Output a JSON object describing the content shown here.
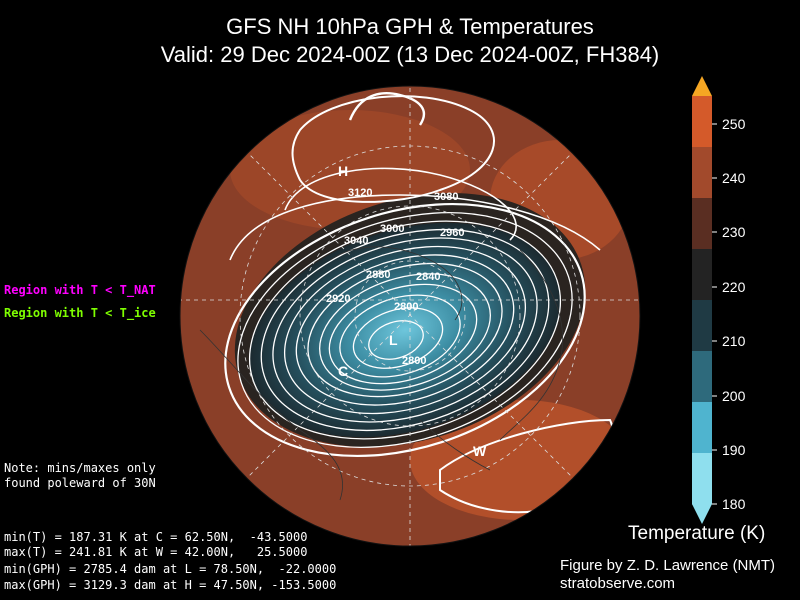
{
  "title": {
    "line1": "GFS NH 10hPa GPH & Temperatures",
    "line2": "Valid: 29 Dec 2024-00Z  (13 Dec 2024-00Z, FH384)"
  },
  "legend": {
    "nat": "Region with T < T_NAT",
    "ice": "Region with T < T_ice"
  },
  "note": {
    "line1": "Note: mins/maxes only",
    "line2": "found poleward of 30N"
  },
  "stats": [
    "min(T) = 187.31 K at C = 62.50N,  -43.5000",
    "max(T) = 241.81 K at W = 42.00N,   25.5000",
    "min(GPH) = 2785.4 dam at L = 78.50N,  -22.0000",
    "max(GPH) = 3129.3 dam at H = 47.50N, -153.5000"
  ],
  "colorbar": {
    "label": "Temperature (K)",
    "ticks": [
      "250",
      "240",
      "230",
      "220",
      "210",
      "200",
      "190",
      "180"
    ],
    "colors": {
      "orange_top": "#f5a623",
      "warm": "#d45a2a",
      "mid_warm": "#a24a2c",
      "brown": "#5a2e22",
      "dark": "#232323",
      "teal_dark": "#1f3a44",
      "teal": "#2e6a7c",
      "cyan": "#4fb4cf",
      "light_cyan": "#8fdfee"
    }
  },
  "markers": {
    "high": "H",
    "low": "L",
    "cold": "C",
    "warm": "W"
  },
  "contour_labels": [
    "3120",
    "3080",
    "3040",
    "3000",
    "2960",
    "2920",
    "2880",
    "2840",
    "2800",
    "2800"
  ],
  "credit": {
    "line1": "Figure by Z. D. Lawrence (NMT)",
    "line2": "stratobserve.com"
  }
}
